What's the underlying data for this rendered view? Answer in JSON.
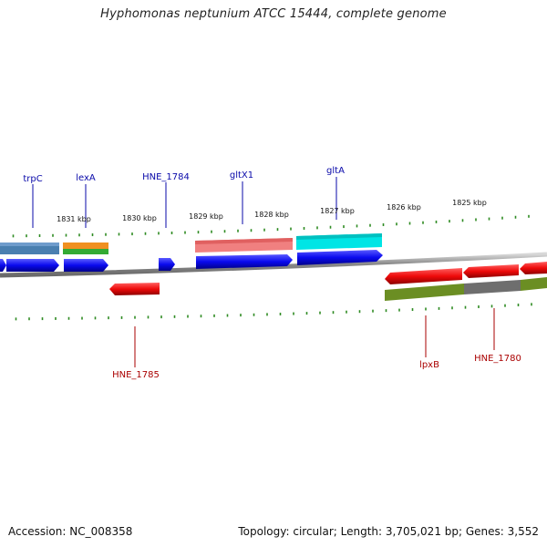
{
  "title": "Hyphomonas neptunium ATCC 15444, complete genome",
  "footer": {
    "accession": "Accession: NC_008358",
    "summary": "Topology: circular; Length: 3,705,021 bp; Genes: 3,552"
  },
  "colors": {
    "forward_label": "#0a0aaa",
    "reverse_label": "#aa0000",
    "tick": "#2e8b22",
    "backbone": "#9a9a9a",
    "forward_gene": "#0a0aee",
    "reverse_gene": "#ee0a0a"
  },
  "scale_labels": [
    {
      "text": "1831 kbp"
    },
    {
      "text": "1830 kbp"
    },
    {
      "text": "1829 kbp"
    },
    {
      "text": "1828 kbp"
    },
    {
      "text": "1827 kbp"
    },
    {
      "text": "1826 kbp"
    },
    {
      "text": "1825 kbp"
    }
  ],
  "gene_labels": [
    {
      "text": "trpC",
      "strand": "forward"
    },
    {
      "text": "lexA",
      "strand": "forward"
    },
    {
      "text": "HNE_1784",
      "strand": "forward"
    },
    {
      "text": "gltX1",
      "strand": "forward"
    },
    {
      "text": "gltA",
      "strand": "forward"
    },
    {
      "text": "HNE_1785",
      "strand": "reverse"
    },
    {
      "text": "lpxB",
      "strand": "reverse"
    },
    {
      "text": "HNE_1780",
      "strand": "reverse"
    }
  ]
}
